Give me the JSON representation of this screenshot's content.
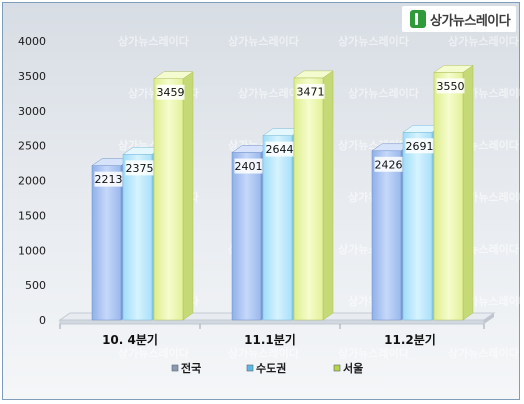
{
  "logo": {
    "text": "상가뉴스레이다"
  },
  "watermark": {
    "text": "상가뉴스레이다"
  },
  "chart_data": {
    "type": "bar",
    "categories": [
      "10. 4분기",
      "11.1분기",
      "11.2분기"
    ],
    "series": [
      {
        "name": "전국",
        "values": [
          2213,
          2401,
          2426
        ]
      },
      {
        "name": "수도권",
        "values": [
          2375,
          2644,
          2691
        ]
      },
      {
        "name": "서울",
        "values": [
          3459,
          3471,
          3550
        ]
      }
    ],
    "yticks": [
      0,
      500,
      1000,
      1500,
      2000,
      2500,
      3000,
      3500,
      4000
    ],
    "ylim": [
      0,
      4000
    ],
    "legend_position": "bottom",
    "grid": false,
    "colors": {
      "전국": "#a9c4f0",
      "수도권": "#b3e5fb",
      "서울": "#e8f5a3"
    }
  }
}
